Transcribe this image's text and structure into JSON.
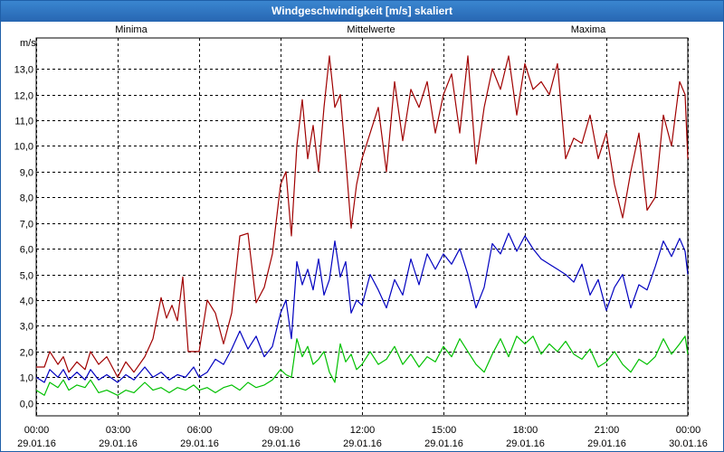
{
  "window": {
    "title": "Windgeschwindigkeit [m/s] skaliert"
  },
  "colors": {
    "minima": "#00c000",
    "mittelwerte": "#0000c0",
    "maxima": "#a00000",
    "grid": "#000000"
  },
  "chart_data": {
    "type": "line",
    "title": "Windgeschwindigkeit [m/s] skaliert",
    "ylabel": "m/s",
    "xlabel": "",
    "ylim": [
      -0.5,
      14.2
    ],
    "xlim": [
      0,
      24
    ],
    "grid": true,
    "yticks": [
      0,
      1,
      2,
      3,
      4,
      5,
      6,
      7,
      8,
      9,
      10,
      11,
      12,
      13
    ],
    "ytick_labels": [
      "0,0",
      "1,0",
      "2,0",
      "3,0",
      "4,0",
      "5,0",
      "6,0",
      "7,0",
      "8,0",
      "9,0",
      "10,0",
      "11,0",
      "12,0",
      "13,0"
    ],
    "xticks": [
      {
        "time": "00:00",
        "date": "29.01.16"
      },
      {
        "time": "03:00",
        "date": "29.01.16"
      },
      {
        "time": "06:00",
        "date": "29.01.16"
      },
      {
        "time": "09:00",
        "date": "29.01.16"
      },
      {
        "time": "12:00",
        "date": "29.01.16"
      },
      {
        "time": "15:00",
        "date": "29.01.16"
      },
      {
        "time": "18:00",
        "date": "29.01.16"
      },
      {
        "time": "21:00",
        "date": "29.01.16"
      },
      {
        "time": "00:00",
        "date": "30.01.16"
      }
    ],
    "series": [
      {
        "name": "Minima",
        "points": [
          [
            0,
            0.5
          ],
          [
            0.3,
            0.3
          ],
          [
            0.5,
            0.8
          ],
          [
            0.8,
            0.6
          ],
          [
            1.0,
            0.9
          ],
          [
            1.2,
            0.5
          ],
          [
            1.5,
            0.7
          ],
          [
            1.8,
            0.6
          ],
          [
            2.0,
            0.9
          ],
          [
            2.3,
            0.4
          ],
          [
            2.6,
            0.5
          ],
          [
            3.0,
            0.3
          ],
          [
            3.3,
            0.5
          ],
          [
            3.6,
            0.4
          ],
          [
            4.0,
            0.8
          ],
          [
            4.3,
            0.5
          ],
          [
            4.6,
            0.6
          ],
          [
            4.9,
            0.4
          ],
          [
            5.2,
            0.6
          ],
          [
            5.5,
            0.5
          ],
          [
            5.8,
            0.7
          ],
          [
            6.0,
            0.5
          ],
          [
            6.3,
            0.6
          ],
          [
            6.6,
            0.4
          ],
          [
            6.9,
            0.6
          ],
          [
            7.2,
            0.7
          ],
          [
            7.5,
            0.5
          ],
          [
            7.8,
            0.8
          ],
          [
            8.1,
            0.6
          ],
          [
            8.4,
            0.7
          ],
          [
            8.7,
            0.9
          ],
          [
            9.0,
            1.3
          ],
          [
            9.2,
            1.1
          ],
          [
            9.4,
            1.0
          ],
          [
            9.6,
            2.5
          ],
          [
            9.8,
            1.8
          ],
          [
            10.0,
            2.2
          ],
          [
            10.2,
            1.5
          ],
          [
            10.4,
            1.7
          ],
          [
            10.6,
            2.0
          ],
          [
            10.8,
            1.2
          ],
          [
            11.0,
            0.8
          ],
          [
            11.2,
            2.3
          ],
          [
            11.4,
            1.6
          ],
          [
            11.6,
            1.9
          ],
          [
            11.8,
            1.3
          ],
          [
            12.0,
            1.5
          ],
          [
            12.3,
            2.0
          ],
          [
            12.6,
            1.5
          ],
          [
            12.9,
            1.7
          ],
          [
            13.2,
            2.2
          ],
          [
            13.5,
            1.5
          ],
          [
            13.8,
            1.9
          ],
          [
            14.1,
            1.4
          ],
          [
            14.4,
            1.8
          ],
          [
            14.7,
            1.6
          ],
          [
            15.0,
            2.2
          ],
          [
            15.3,
            1.8
          ],
          [
            15.6,
            2.5
          ],
          [
            15.9,
            2.0
          ],
          [
            16.2,
            1.5
          ],
          [
            16.5,
            1.2
          ],
          [
            16.8,
            1.9
          ],
          [
            17.1,
            2.5
          ],
          [
            17.4,
            1.8
          ],
          [
            17.7,
            2.6
          ],
          [
            18.0,
            2.3
          ],
          [
            18.3,
            2.6
          ],
          [
            18.6,
            1.9
          ],
          [
            18.9,
            2.3
          ],
          [
            19.2,
            2.0
          ],
          [
            19.5,
            2.4
          ],
          [
            19.8,
            1.9
          ],
          [
            20.1,
            1.7
          ],
          [
            20.4,
            2.1
          ],
          [
            20.7,
            1.4
          ],
          [
            21.0,
            1.6
          ],
          [
            21.3,
            2.0
          ],
          [
            21.6,
            1.5
          ],
          [
            21.9,
            1.2
          ],
          [
            22.2,
            1.7
          ],
          [
            22.5,
            1.5
          ],
          [
            22.8,
            1.8
          ],
          [
            23.1,
            2.5
          ],
          [
            23.4,
            1.9
          ],
          [
            23.7,
            2.3
          ],
          [
            23.9,
            2.6
          ],
          [
            24.0,
            1.9
          ]
        ]
      },
      {
        "name": "Mittelwerte",
        "points": [
          [
            0,
            1.0
          ],
          [
            0.3,
            0.8
          ],
          [
            0.5,
            1.3
          ],
          [
            0.8,
            1.0
          ],
          [
            1.0,
            1.3
          ],
          [
            1.2,
            0.9
          ],
          [
            1.5,
            1.2
          ],
          [
            1.8,
            0.9
          ],
          [
            2.0,
            1.3
          ],
          [
            2.3,
            0.9
          ],
          [
            2.6,
            1.1
          ],
          [
            3.0,
            0.8
          ],
          [
            3.3,
            1.1
          ],
          [
            3.6,
            0.9
          ],
          [
            4.0,
            1.4
          ],
          [
            4.3,
            1.0
          ],
          [
            4.6,
            1.2
          ],
          [
            4.9,
            0.9
          ],
          [
            5.2,
            1.1
          ],
          [
            5.5,
            1.0
          ],
          [
            5.8,
            1.4
          ],
          [
            6.0,
            1.0
          ],
          [
            6.3,
            1.2
          ],
          [
            6.6,
            1.7
          ],
          [
            6.9,
            1.5
          ],
          [
            7.2,
            2.1
          ],
          [
            7.5,
            2.8
          ],
          [
            7.8,
            2.1
          ],
          [
            8.1,
            2.6
          ],
          [
            8.4,
            1.8
          ],
          [
            8.7,
            2.2
          ],
          [
            9.0,
            3.5
          ],
          [
            9.2,
            4.0
          ],
          [
            9.4,
            2.5
          ],
          [
            9.6,
            5.5
          ],
          [
            9.8,
            4.6
          ],
          [
            10.0,
            5.2
          ],
          [
            10.2,
            4.4
          ],
          [
            10.4,
            5.6
          ],
          [
            10.6,
            4.2
          ],
          [
            10.8,
            4.8
          ],
          [
            11.0,
            6.3
          ],
          [
            11.2,
            4.9
          ],
          [
            11.4,
            5.5
          ],
          [
            11.6,
            3.5
          ],
          [
            11.8,
            4.0
          ],
          [
            12.0,
            3.8
          ],
          [
            12.3,
            5.0
          ],
          [
            12.6,
            4.4
          ],
          [
            12.9,
            3.7
          ],
          [
            13.2,
            4.8
          ],
          [
            13.5,
            4.2
          ],
          [
            13.8,
            5.6
          ],
          [
            14.1,
            4.6
          ],
          [
            14.4,
            5.8
          ],
          [
            14.7,
            5.2
          ],
          [
            15.0,
            5.8
          ],
          [
            15.3,
            5.4
          ],
          [
            15.6,
            6.0
          ],
          [
            15.9,
            5.0
          ],
          [
            16.2,
            3.7
          ],
          [
            16.5,
            4.5
          ],
          [
            16.8,
            6.2
          ],
          [
            17.1,
            5.8
          ],
          [
            17.4,
            6.6
          ],
          [
            17.7,
            5.9
          ],
          [
            18.0,
            6.5
          ],
          [
            18.3,
            6.0
          ],
          [
            18.6,
            5.6
          ],
          [
            18.9,
            5.4
          ],
          [
            19.2,
            5.2
          ],
          [
            19.5,
            5.0
          ],
          [
            19.8,
            4.7
          ],
          [
            20.1,
            5.4
          ],
          [
            20.4,
            4.2
          ],
          [
            20.7,
            4.8
          ],
          [
            21.0,
            3.6
          ],
          [
            21.3,
            4.5
          ],
          [
            21.6,
            5.0
          ],
          [
            21.9,
            3.7
          ],
          [
            22.2,
            4.6
          ],
          [
            22.5,
            4.4
          ],
          [
            22.8,
            5.3
          ],
          [
            23.1,
            6.3
          ],
          [
            23.4,
            5.7
          ],
          [
            23.7,
            6.4
          ],
          [
            23.9,
            5.9
          ],
          [
            24.0,
            5.0
          ]
        ]
      },
      {
        "name": "Maxima",
        "points": [
          [
            0,
            1.4
          ],
          [
            0.3,
            1.4
          ],
          [
            0.5,
            2.0
          ],
          [
            0.8,
            1.5
          ],
          [
            1.0,
            1.8
          ],
          [
            1.2,
            1.2
          ],
          [
            1.5,
            1.6
          ],
          [
            1.8,
            1.3
          ],
          [
            2.0,
            2.0
          ],
          [
            2.3,
            1.5
          ],
          [
            2.6,
            1.8
          ],
          [
            3.0,
            1.0
          ],
          [
            3.3,
            1.6
          ],
          [
            3.6,
            1.2
          ],
          [
            4.0,
            1.8
          ],
          [
            4.3,
            2.5
          ],
          [
            4.6,
            4.1
          ],
          [
            4.8,
            3.3
          ],
          [
            5.0,
            3.8
          ],
          [
            5.2,
            3.2
          ],
          [
            5.4,
            4.9
          ],
          [
            5.6,
            2.0
          ],
          [
            5.8,
            2.0
          ],
          [
            6.0,
            2.0
          ],
          [
            6.3,
            4.0
          ],
          [
            6.6,
            3.5
          ],
          [
            6.9,
            2.3
          ],
          [
            7.2,
            3.5
          ],
          [
            7.5,
            6.5
          ],
          [
            7.8,
            6.6
          ],
          [
            8.1,
            3.9
          ],
          [
            8.4,
            4.5
          ],
          [
            8.7,
            5.8
          ],
          [
            9.0,
            8.5
          ],
          [
            9.2,
            9.0
          ],
          [
            9.4,
            6.5
          ],
          [
            9.6,
            10.0
          ],
          [
            9.8,
            11.8
          ],
          [
            10.0,
            9.5
          ],
          [
            10.2,
            10.8
          ],
          [
            10.4,
            9.0
          ],
          [
            10.6,
            11.5
          ],
          [
            10.8,
            13.5
          ],
          [
            11.0,
            11.5
          ],
          [
            11.2,
            12.0
          ],
          [
            11.4,
            9.5
          ],
          [
            11.6,
            6.8
          ],
          [
            11.8,
            8.5
          ],
          [
            12.0,
            9.5
          ],
          [
            12.3,
            10.5
          ],
          [
            12.6,
            11.5
          ],
          [
            12.9,
            9.0
          ],
          [
            13.2,
            12.5
          ],
          [
            13.5,
            10.2
          ],
          [
            13.8,
            12.2
          ],
          [
            14.1,
            11.5
          ],
          [
            14.4,
            12.5
          ],
          [
            14.7,
            10.5
          ],
          [
            15.0,
            12.0
          ],
          [
            15.3,
            12.8
          ],
          [
            15.6,
            10.5
          ],
          [
            15.9,
            13.5
          ],
          [
            16.2,
            9.3
          ],
          [
            16.5,
            11.5
          ],
          [
            16.8,
            13.0
          ],
          [
            17.1,
            12.2
          ],
          [
            17.4,
            13.5
          ],
          [
            17.7,
            11.2
          ],
          [
            18.0,
            13.2
          ],
          [
            18.3,
            12.2
          ],
          [
            18.6,
            12.5
          ],
          [
            18.9,
            12.0
          ],
          [
            19.2,
            13.2
          ],
          [
            19.5,
            9.5
          ],
          [
            19.8,
            10.3
          ],
          [
            20.1,
            10.1
          ],
          [
            20.4,
            11.2
          ],
          [
            20.7,
            9.5
          ],
          [
            21.0,
            10.5
          ],
          [
            21.3,
            8.5
          ],
          [
            21.6,
            7.2
          ],
          [
            21.9,
            9.0
          ],
          [
            22.2,
            10.5
          ],
          [
            22.5,
            7.5
          ],
          [
            22.8,
            8.0
          ],
          [
            23.1,
            11.2
          ],
          [
            23.4,
            10.0
          ],
          [
            23.7,
            12.5
          ],
          [
            23.9,
            12.0
          ],
          [
            24.0,
            9.5
          ]
        ]
      }
    ]
  }
}
